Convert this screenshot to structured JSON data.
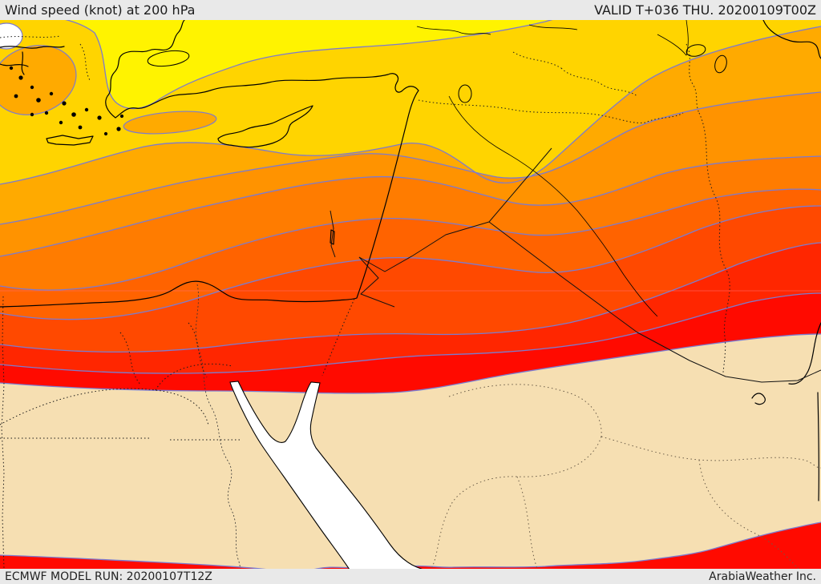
{
  "header": {
    "title": "Wind speed (knot) at 200 hPa",
    "valid_label": "VALID T+036 THU. 20200109T00Z"
  },
  "footer": {
    "model_run": "ECMWF MODEL RUN: 20200107T12Z",
    "attribution": "ArabiaWeather Inc."
  },
  "map": {
    "type": "filled-contour-weather-map",
    "contour_line_color": "#7B7BD0",
    "coastline_color": "#000000",
    "graticule_color": "rgba(255,110,110,0.55)",
    "bands": [
      {
        "name": "wind-band-1",
        "color": "#FFF300"
      },
      {
        "name": "wind-band-2",
        "color": "#FFD400"
      },
      {
        "name": "wind-band-3",
        "color": "#FFAA00"
      },
      {
        "name": "wind-band-4",
        "color": "#FF9300"
      },
      {
        "name": "wind-band-5",
        "color": "#FF7C00"
      },
      {
        "name": "wind-band-6",
        "color": "#FF6300"
      },
      {
        "name": "wind-band-7",
        "color": "#FF4900"
      },
      {
        "name": "wind-band-8",
        "color": "#FF2600"
      },
      {
        "name": "wind-band-9-jet-max",
        "color": "#FF0A00"
      },
      {
        "name": "wind-band-low-beige",
        "color": "#F6DFB2"
      },
      {
        "name": "wind-band-calm-white",
        "color": "#FFFFFF"
      }
    ]
  }
}
